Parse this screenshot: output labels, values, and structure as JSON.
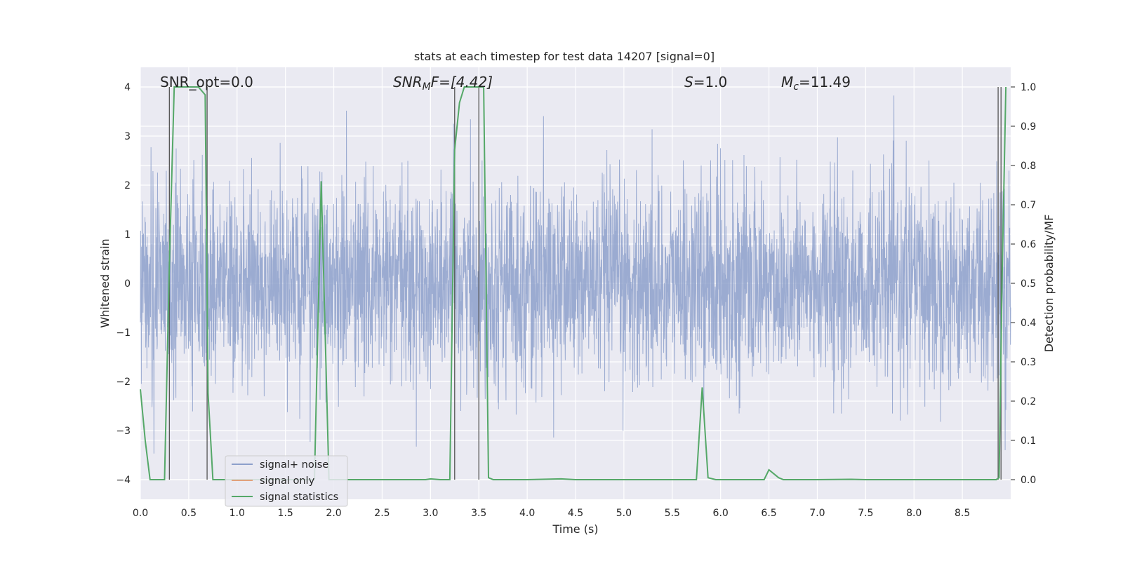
{
  "chart_data": {
    "type": "line",
    "title": "stats at each timestep for test data 14207 [signal=0]",
    "xlabel": "Time (s)",
    "ylabel_left": "Whitened strain",
    "ylabel_right": "Detection probability/MF",
    "xlim": [
      0,
      9
    ],
    "ylim_left": [
      -4.4,
      4.4
    ],
    "ylim_right": [
      -0.05,
      1.05
    ],
    "xticks": [
      "0.0",
      "0.5",
      "1.0",
      "1.5",
      "2.0",
      "2.5",
      "3.0",
      "3.5",
      "4.0",
      "4.5",
      "5.0",
      "5.5",
      "6.0",
      "6.5",
      "7.0",
      "7.5",
      "8.0",
      "8.5"
    ],
    "yticks_left": [
      "−4",
      "−3",
      "−2",
      "−1",
      "0",
      "1",
      "2",
      "3",
      "4"
    ],
    "yticks_right": [
      "0.0",
      "0.1",
      "0.2",
      "0.3",
      "0.4",
      "0.5",
      "0.6",
      "0.7",
      "0.8",
      "0.9",
      "1.0"
    ],
    "grid": true,
    "legend_position": "lower-left",
    "annotations": {
      "snr_opt": "SNR_opt=0.0",
      "snr_mf_var": "SNR",
      "snr_mf_sub": "M",
      "snr_mf_rest": "F=[4.42]",
      "s_var": "S",
      "s_rest": "=1.0",
      "mc_var": "M",
      "mc_sub": "c",
      "mc_rest": "=11.49"
    },
    "series": [
      {
        "name": "signal+ noise",
        "color": "#8da0cb",
        "description_range": [
          -4.0,
          4.0
        ],
        "noise_std": 1.0,
        "duration": 9.0
      },
      {
        "name": "signal only",
        "color": "#e1a17c",
        "values": []
      },
      {
        "name": "signal statistics",
        "color": "#55a868",
        "x": [
          0.0,
          0.05,
          0.1,
          0.15,
          0.25,
          0.3,
          0.35,
          0.4,
          0.5,
          0.6,
          0.67,
          0.7,
          0.75,
          0.8,
          0.9,
          1.0,
          1.5,
          1.8,
          1.87,
          1.95,
          2.0,
          2.5,
          2.95,
          3.0,
          3.1,
          3.2,
          3.25,
          3.3,
          3.35,
          3.5,
          3.55,
          3.6,
          3.65,
          4.0,
          4.35,
          4.5,
          5.0,
          5.5,
          5.75,
          5.81,
          5.87,
          5.95,
          6.0,
          6.45,
          6.5,
          6.6,
          6.65,
          7.0,
          7.35,
          7.5,
          8.0,
          8.5,
          8.85,
          8.88,
          8.91,
          8.95
        ],
        "y": [
          0.23,
          0.1,
          0.0,
          0.0,
          0.0,
          0.55,
          1.0,
          1.0,
          1.0,
          1.0,
          0.98,
          0.22,
          0.0,
          0.0,
          0.0,
          0.0,
          0.0,
          0.0,
          0.76,
          0.0,
          0.0,
          0.0,
          0.0,
          0.002,
          0.0,
          0.0,
          0.84,
          0.96,
          1.0,
          1.0,
          1.0,
          0.005,
          0.0,
          0.0,
          0.002,
          0.0,
          0.0,
          0.0,
          0.0,
          0.235,
          0.005,
          0.0,
          0.0,
          0.0,
          0.025,
          0.005,
          0.0,
          0.0,
          0.001,
          0.0,
          0.0,
          0.0,
          0.0,
          0.005,
          0.5,
          1.0
        ]
      }
    ],
    "vertical_lines_x": [
      0.3,
      0.69,
      3.25,
      3.5,
      8.87,
      8.9
    ]
  }
}
